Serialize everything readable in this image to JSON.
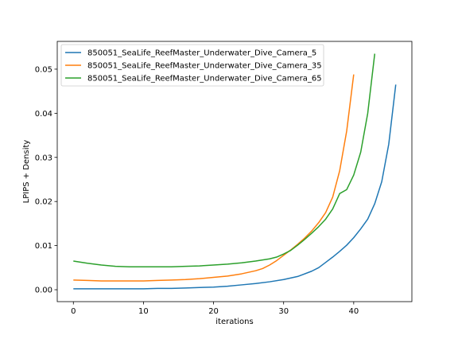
{
  "chart_data": {
    "type": "line",
    "title": "",
    "xlabel": "iterations",
    "ylabel": "LPIPS + Density",
    "xlim": [
      -2.3,
      48.3
    ],
    "ylim": [
      -0.0027,
      0.0563
    ],
    "xticks": [
      0,
      10,
      20,
      30,
      40
    ],
    "yticks": [
      0.0,
      0.01,
      0.02,
      0.03,
      0.04,
      0.05
    ],
    "xtick_labels": [
      "0",
      "10",
      "20",
      "30",
      "40"
    ],
    "ytick_labels": [
      "0.00",
      "0.01",
      "0.02",
      "0.03",
      "0.04",
      "0.05"
    ],
    "grid": false,
    "legend_position": "upper-left",
    "series": [
      {
        "name": "850051_SeaLife_ReefMaster_Underwater_Dive_Camera_5",
        "color": "#1f77b4",
        "x": [
          0,
          2,
          4,
          6,
          8,
          10,
          12,
          14,
          16,
          18,
          20,
          22,
          24,
          26,
          28,
          30,
          32,
          34,
          35,
          36,
          37,
          38,
          39,
          40,
          41,
          42,
          43,
          44,
          45,
          46
        ],
        "y": [
          0.0002,
          0.0002,
          0.0002,
          0.0002,
          0.0002,
          0.0002,
          0.0003,
          0.0003,
          0.0004,
          0.0005,
          0.0006,
          0.0008,
          0.0011,
          0.0014,
          0.0018,
          0.0023,
          0.003,
          0.0042,
          0.005,
          0.0062,
          0.0074,
          0.0087,
          0.0101,
          0.0118,
          0.0138,
          0.016,
          0.0195,
          0.0245,
          0.033,
          0.0465
        ]
      },
      {
        "name": "850051_SeaLife_ReefMaster_Underwater_Dive_Camera_35",
        "color": "#ff7f0e",
        "x": [
          0,
          2,
          4,
          6,
          8,
          10,
          12,
          14,
          16,
          18,
          20,
          22,
          24,
          26,
          27,
          28,
          29,
          30,
          31,
          32,
          33,
          34,
          35,
          36,
          37,
          38,
          39,
          40
        ],
        "y": [
          0.0022,
          0.0021,
          0.002,
          0.002,
          0.002,
          0.002,
          0.0021,
          0.0022,
          0.0023,
          0.0025,
          0.0028,
          0.0031,
          0.0036,
          0.0043,
          0.0048,
          0.0056,
          0.0066,
          0.0078,
          0.009,
          0.0103,
          0.0117,
          0.0133,
          0.0152,
          0.0175,
          0.021,
          0.027,
          0.036,
          0.0488
        ]
      },
      {
        "name": "850051_SeaLife_ReefMaster_Underwater_Dive_Camera_65",
        "color": "#2ca02c",
        "x": [
          0,
          2,
          4,
          6,
          8,
          10,
          12,
          14,
          16,
          18,
          20,
          22,
          24,
          26,
          28,
          29,
          30,
          31,
          32,
          33,
          34,
          35,
          36,
          37,
          38,
          39,
          40,
          41,
          42,
          43
        ],
        "y": [
          0.0065,
          0.006,
          0.0056,
          0.0053,
          0.0052,
          0.0052,
          0.0052,
          0.0052,
          0.0053,
          0.0054,
          0.0056,
          0.0058,
          0.0061,
          0.0065,
          0.007,
          0.0074,
          0.0081,
          0.0089,
          0.0101,
          0.0114,
          0.0128,
          0.0143,
          0.016,
          0.0183,
          0.0218,
          0.0227,
          0.026,
          0.0312,
          0.04,
          0.0535
        ]
      }
    ]
  }
}
